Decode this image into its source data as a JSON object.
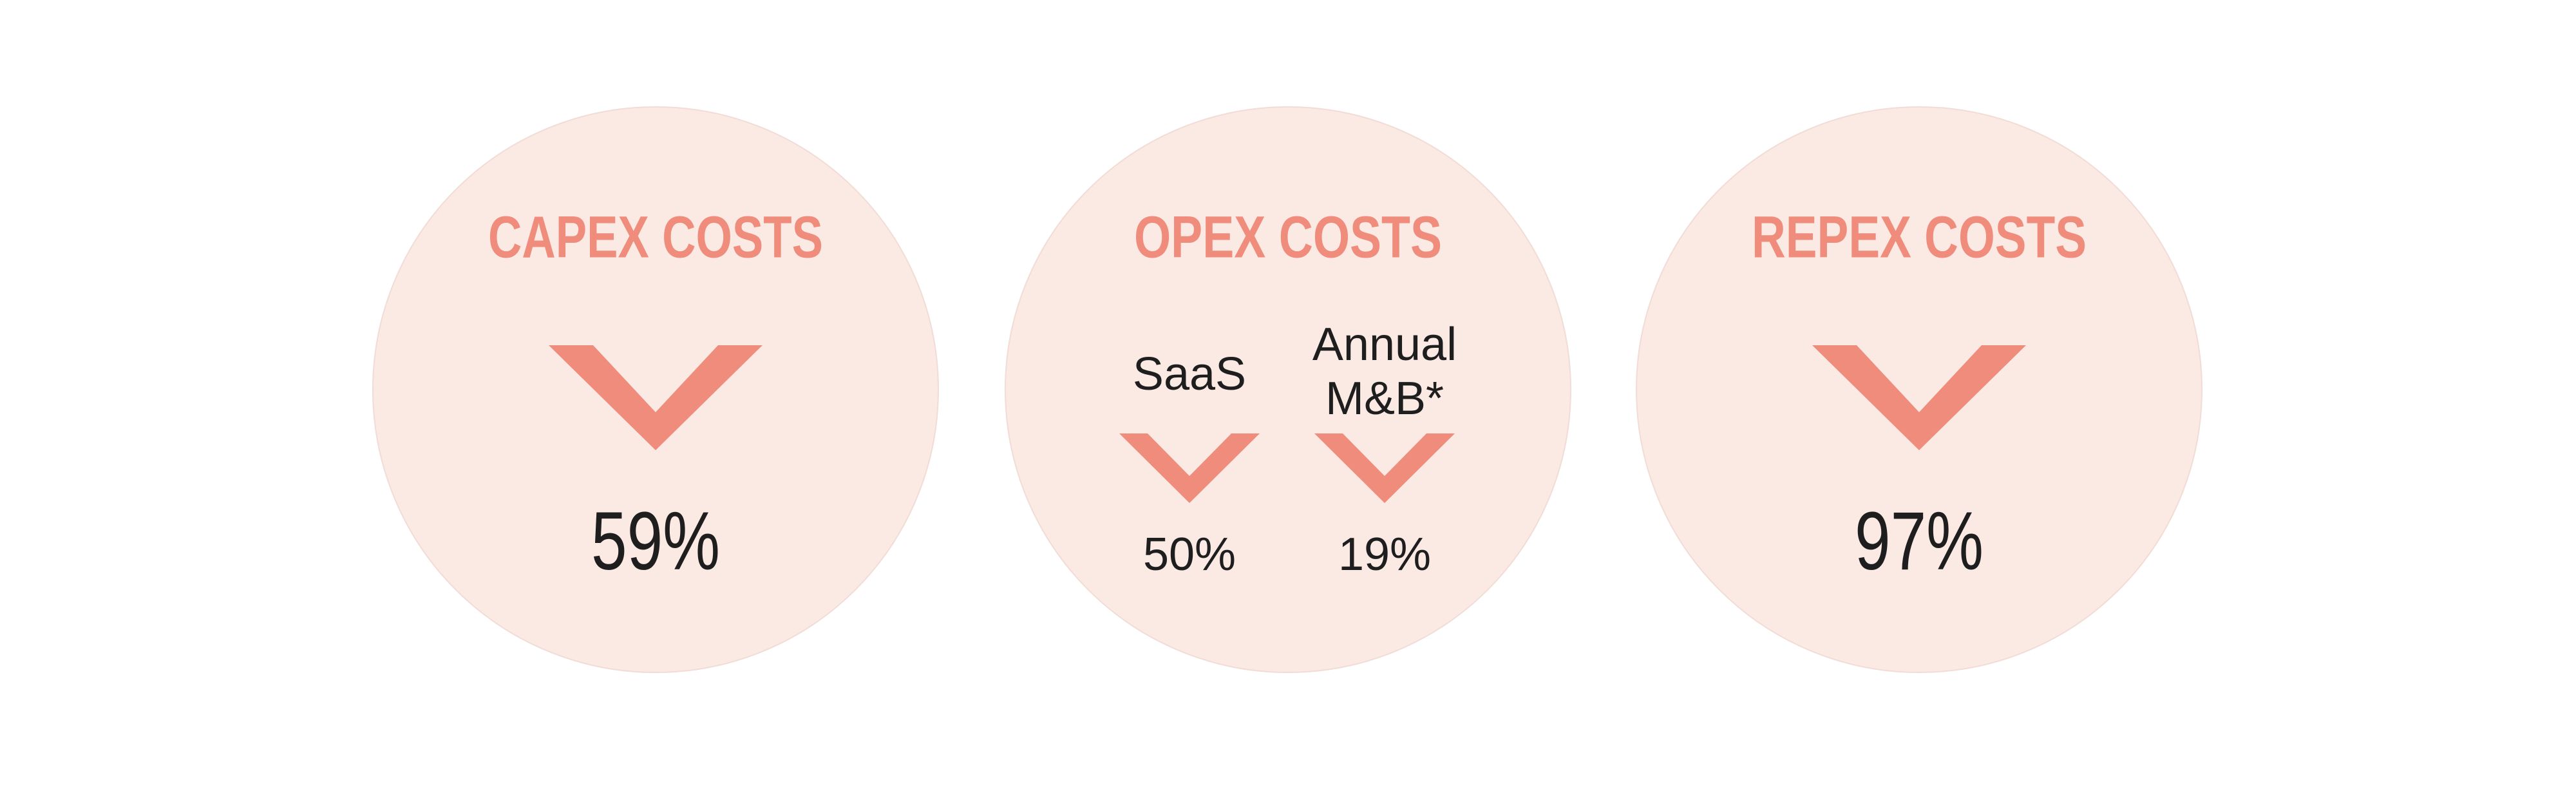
{
  "panels": [
    {
      "title": "CAPEX COSTS",
      "items": [
        {
          "value": "59%"
        }
      ]
    },
    {
      "title": "OPEX COSTS",
      "items": [
        {
          "label": [
            "SaaS"
          ],
          "value": "50%"
        },
        {
          "label": [
            "Annual",
            "M&B*"
          ],
          "value": "19%"
        }
      ]
    },
    {
      "title": "REPEX COSTS",
      "items": [
        {
          "value": "97%"
        }
      ]
    }
  ]
}
